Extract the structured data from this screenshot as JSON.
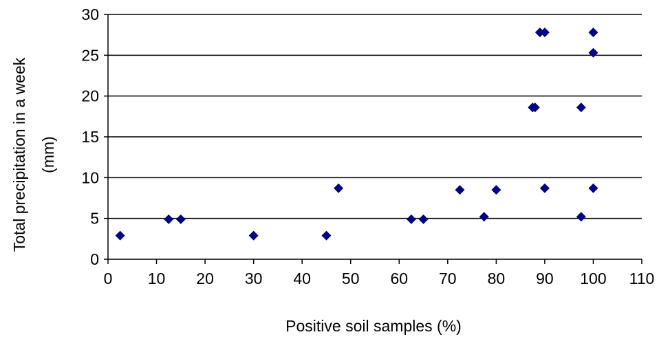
{
  "chart_data": {
    "type": "scatter",
    "title": "",
    "xlabel": "Positive soil samples (%)",
    "ylabel_lines": [
      "Total precipitation in a week",
      "(mm)"
    ],
    "xlim": [
      0,
      110
    ],
    "ylim": [
      0,
      30
    ],
    "x_ticks": [
      0,
      10,
      20,
      30,
      40,
      50,
      60,
      70,
      80,
      90,
      100,
      110
    ],
    "y_ticks": [
      0,
      5,
      10,
      15,
      20,
      25,
      30
    ],
    "grid": "horizontal",
    "legend": "none",
    "marker": "diamond",
    "marker_color": "#000080",
    "series": [
      {
        "points": [
          {
            "x": 2.5,
            "y": 2.9
          },
          {
            "x": 12.5,
            "y": 4.9
          },
          {
            "x": 15,
            "y": 4.9
          },
          {
            "x": 30,
            "y": 2.9
          },
          {
            "x": 45,
            "y": 2.9
          },
          {
            "x": 47.5,
            "y": 8.7
          },
          {
            "x": 62.5,
            "y": 4.9
          },
          {
            "x": 65,
            "y": 4.9
          },
          {
            "x": 72.5,
            "y": 8.5
          },
          {
            "x": 77.5,
            "y": 5.2
          },
          {
            "x": 80,
            "y": 8.5
          },
          {
            "x": 87.5,
            "y": 18.6
          },
          {
            "x": 88,
            "y": 18.6
          },
          {
            "x": 89,
            "y": 27.8
          },
          {
            "x": 90,
            "y": 27.8
          },
          {
            "x": 90,
            "y": 8.7
          },
          {
            "x": 97.5,
            "y": 18.6
          },
          {
            "x": 97.5,
            "y": 5.2
          },
          {
            "x": 100,
            "y": 27.8
          },
          {
            "x": 100,
            "y": 25.3
          },
          {
            "x": 100,
            "y": 8.7
          }
        ]
      }
    ]
  }
}
